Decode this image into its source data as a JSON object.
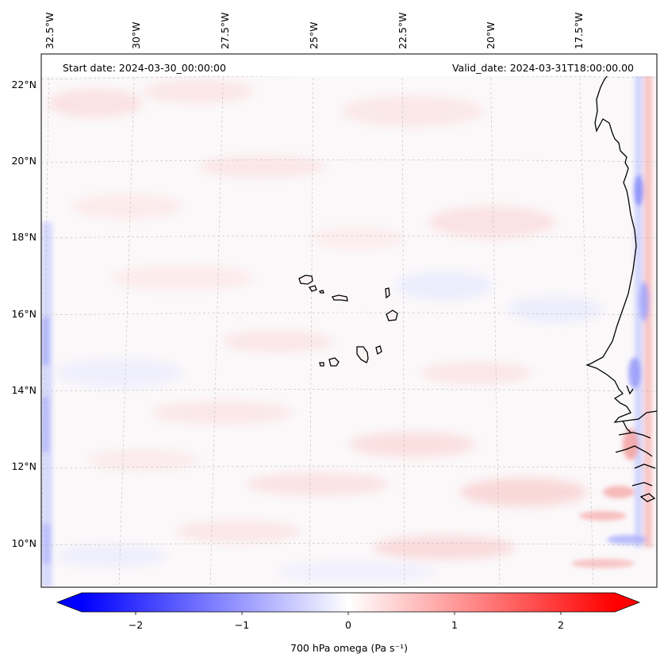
{
  "map": {
    "header": {
      "start_date": "Start date: 2024-03-30_00:00:00",
      "valid_date": "Valid_date: 2024-03-31T18:00:00.00"
    },
    "lon_labels": [
      "32.5°W",
      "30°W",
      "27.5°W",
      "25°W",
      "22.5°W",
      "20°W",
      "17.5°W"
    ],
    "lat_labels": [
      "22°N",
      "20°N",
      "18°N",
      "16°N",
      "14°N",
      "12°N",
      "10°N"
    ],
    "field": "700 hPa omega",
    "extent": {
      "lon_west": -33.0,
      "lon_east": -15.8,
      "lat_south": 8.9,
      "lat_north": 22.8
    }
  },
  "colorbar": {
    "label": "700 hPa omega (Pa s⁻¹)",
    "ticks": [
      "−2",
      "−1",
      "0",
      "1",
      "2"
    ],
    "min": -2.5,
    "max": 2.5,
    "cmap": "bwr",
    "colors": {
      "low": "#0000ff",
      "mid": "#ffffff",
      "high": "#ff0000"
    }
  },
  "colors": {
    "coastline": "#000000",
    "gridline": "#b0b0b0",
    "frame": "#000000"
  }
}
